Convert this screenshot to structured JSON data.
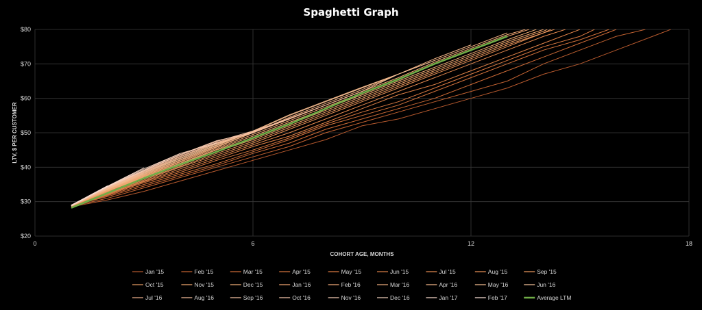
{
  "chart_data": {
    "type": "line",
    "title": "Spaghetti Graph",
    "xlabel": "COHORT AGE, MONTHS",
    "ylabel": "LTV, $  PER CUSTOMER",
    "xlim": [
      0,
      18
    ],
    "ylim": [
      20,
      80
    ],
    "x_ticks": [
      "0",
      "6",
      "12",
      "18"
    ],
    "y_ticks": [
      "$20",
      "$30",
      "$40",
      "$50",
      "$60",
      "$70",
      "$80"
    ],
    "grid": true,
    "legend_position": "bottom",
    "series": [
      {
        "name": "Jan '15",
        "color": "#b85a2e",
        "width": 1,
        "x": [
          1,
          2,
          3,
          4,
          5,
          6,
          7,
          8,
          9,
          10,
          11,
          12,
          13,
          14,
          15,
          16,
          17,
          17.5
        ],
        "y": [
          28.5,
          30.5,
          33,
          36,
          39,
          42,
          45,
          48,
          52,
          54,
          57,
          60,
          63,
          67,
          70,
          74,
          78,
          80
        ]
      },
      {
        "name": "Feb '15",
        "color": "#c26231",
        "width": 1,
        "x": [
          1,
          2,
          3,
          4,
          5,
          6,
          7,
          8,
          9,
          10,
          11,
          12,
          13,
          14,
          15,
          16,
          16.8
        ],
        "y": [
          28.6,
          31,
          34,
          37,
          40,
          43,
          46,
          50,
          53,
          56,
          59,
          62,
          65,
          70,
          74,
          78,
          80
        ]
      },
      {
        "name": "Mar '15",
        "color": "#cc6a36",
        "width": 1,
        "x": [
          1,
          2,
          3,
          4,
          5,
          6,
          7,
          8,
          9,
          10,
          11,
          12,
          13,
          14,
          15,
          16
        ],
        "y": [
          28.8,
          31.5,
          34.5,
          37.5,
          40.5,
          44,
          47,
          51,
          54,
          57,
          60,
          64,
          68,
          72,
          76,
          80
        ]
      },
      {
        "name": "Apr '15",
        "color": "#d4733c",
        "width": 1,
        "x": [
          1,
          2,
          3,
          4,
          5,
          6,
          7,
          8,
          9,
          10,
          11,
          12,
          13,
          14,
          15,
          15.8
        ],
        "y": [
          28.7,
          31.8,
          35,
          38,
          41,
          44.5,
          48,
          52,
          55,
          58,
          62,
          66,
          70,
          74,
          77,
          80
        ]
      },
      {
        "name": "May '15",
        "color": "#db7a42",
        "width": 1,
        "x": [
          1,
          2,
          3,
          4,
          5,
          6,
          7,
          8,
          9,
          10,
          11,
          12,
          13,
          14,
          15,
          15.4
        ],
        "y": [
          28.9,
          32,
          35.5,
          38.5,
          42,
          45,
          48.5,
          52.5,
          56,
          59,
          63,
          67,
          71,
          75,
          78,
          80
        ]
      },
      {
        "name": "Jun '15",
        "color": "#e08248",
        "width": 1,
        "x": [
          1,
          2,
          3,
          4,
          5,
          6,
          7,
          8,
          9,
          10,
          11,
          12,
          13,
          14,
          15
        ],
        "y": [
          29,
          32.2,
          35.8,
          39,
          42.5,
          46,
          49,
          53,
          57,
          61,
          64,
          68,
          72,
          76,
          80
        ]
      },
      {
        "name": "Jul '15",
        "color": "#e4894f",
        "width": 1,
        "x": [
          1,
          2,
          3,
          4,
          5,
          6,
          7,
          8,
          9,
          10,
          11,
          12,
          13,
          14,
          14.6
        ],
        "y": [
          28.6,
          32.4,
          36,
          39.5,
          43,
          46.5,
          50,
          54,
          58,
          62,
          66,
          70,
          74,
          78,
          80
        ]
      },
      {
        "name": "Aug '15",
        "color": "#e89156",
        "width": 1,
        "x": [
          1,
          2,
          3,
          4,
          5,
          6,
          7,
          8,
          9,
          10,
          11,
          12,
          13,
          14,
          14.3
        ],
        "y": [
          28.8,
          32.6,
          36.3,
          40,
          43.5,
          47,
          51,
          55,
          59,
          63,
          67,
          71,
          75,
          79,
          80
        ]
      },
      {
        "name": "Sep '15",
        "color": "#eb985e",
        "width": 1,
        "x": [
          1,
          2,
          3,
          4,
          5,
          6,
          7,
          8,
          9,
          10,
          11,
          12,
          13,
          14,
          14.2
        ],
        "y": [
          28.9,
          32.8,
          36.6,
          40.2,
          44,
          47.5,
          51.5,
          55.5,
          59.5,
          63.5,
          67.5,
          71.5,
          75.5,
          79,
          80
        ]
      },
      {
        "name": "Oct '15",
        "color": "#ed9f66",
        "width": 1,
        "x": [
          1,
          2,
          3,
          4,
          5,
          6,
          7,
          8,
          9,
          10,
          11,
          12,
          13,
          14,
          14.1
        ],
        "y": [
          29,
          33,
          37,
          40.5,
          44.5,
          48,
          52,
          56,
          60,
          64,
          68,
          72,
          76,
          79.5,
          80
        ]
      },
      {
        "name": "Nov '15",
        "color": "#efa66e",
        "width": 1,
        "x": [
          1,
          2,
          3,
          4,
          5,
          6,
          7,
          8,
          9,
          10,
          11,
          12,
          13,
          14
        ],
        "y": [
          28.7,
          33.1,
          37.1,
          41,
          45,
          48.5,
          52.5,
          56.5,
          60.5,
          64.5,
          68.5,
          72.5,
          76.5,
          80
        ]
      },
      {
        "name": "Dec '15",
        "color": "#f0ad76",
        "width": 1,
        "x": [
          1,
          2,
          3,
          4,
          5,
          6,
          7,
          8,
          9,
          10,
          11,
          12,
          13,
          13.8
        ],
        "y": [
          28.8,
          33.2,
          37.3,
          41.2,
          45.2,
          49,
          53,
          57,
          61,
          65,
          69,
          73,
          77,
          80
        ]
      },
      {
        "name": "Jan '16",
        "color": "#f0a470",
        "width": 1,
        "x": [
          1,
          2,
          3,
          4,
          5,
          6,
          7,
          8,
          9,
          10,
          11,
          12,
          13,
          13.6
        ],
        "y": [
          28.9,
          33.3,
          37.5,
          41.5,
          45.5,
          49.5,
          53.5,
          57.5,
          61.5,
          65.5,
          70,
          74,
          78,
          80
        ]
      },
      {
        "name": "Feb '16",
        "color": "#f1aa78",
        "width": 1,
        "x": [
          1,
          2,
          3,
          4,
          5,
          6,
          7,
          8,
          9,
          10,
          11,
          12,
          13,
          13.5
        ],
        "y": [
          29,
          33.4,
          37.6,
          41.7,
          45.8,
          50,
          54,
          58,
          62,
          66,
          70.5,
          74.5,
          78.5,
          80
        ]
      },
      {
        "name": "Mar '16",
        "color": "#f2b080",
        "width": 1,
        "x": [
          1,
          2,
          3,
          4,
          5,
          6,
          7,
          8,
          9,
          10,
          11,
          12,
          13
        ],
        "y": [
          28.7,
          33.5,
          37.8,
          42,
          46,
          50,
          54.5,
          58.5,
          62.5,
          67,
          71,
          75,
          79
        ]
      },
      {
        "name": "Apr '16",
        "color": "#f2b688",
        "width": 1,
        "x": [
          1,
          2,
          3,
          4,
          5,
          6,
          7,
          8,
          9,
          10,
          11,
          12
        ],
        "y": [
          28.8,
          33.6,
          38,
          42.2,
          46.3,
          50.3,
          55,
          59,
          63,
          67,
          71.5,
          75.5
        ]
      },
      {
        "name": "May '16",
        "color": "#f3bc90",
        "width": 1,
        "x": [
          1,
          2,
          3,
          4,
          5,
          6,
          7,
          8,
          9,
          10,
          11
        ],
        "y": [
          28.9,
          33.7,
          38.2,
          42.5,
          46.5,
          50.5,
          55.2,
          59.2,
          63.2,
          67,
          71
        ]
      },
      {
        "name": "Jun '16",
        "color": "#f3c198",
        "width": 1,
        "x": [
          1,
          2,
          3,
          4,
          5,
          6,
          7,
          8,
          9,
          10
        ],
        "y": [
          29,
          33.8,
          38.4,
          42.7,
          46.8,
          50,
          54,
          58,
          62,
          67
        ]
      },
      {
        "name": "Jul '16",
        "color": "#f2b590",
        "width": 1,
        "x": [
          1,
          2,
          3,
          4,
          5,
          6,
          7,
          8,
          9
        ],
        "y": [
          28.7,
          33.9,
          38.5,
          43,
          47,
          50,
          54,
          58,
          62
        ]
      },
      {
        "name": "Aug '16",
        "color": "#f3bb9a",
        "width": 1,
        "x": [
          1,
          2,
          3,
          4,
          5,
          6,
          7,
          8
        ],
        "y": [
          28.8,
          34,
          38.7,
          43.2,
          47.2,
          50.2,
          54.2,
          58
        ]
      },
      {
        "name": "Sep '16",
        "color": "#f4c1a3",
        "width": 1,
        "x": [
          1,
          2,
          3,
          4,
          5,
          6,
          7
        ],
        "y": [
          28.9,
          34.1,
          38.9,
          43.5,
          47.5,
          50.5,
          54
        ]
      },
      {
        "name": "Oct '16",
        "color": "#f5c7ad",
        "width": 1,
        "x": [
          1,
          2,
          3,
          4,
          5,
          6
        ],
        "y": [
          29,
          34.2,
          39,
          43.7,
          47.7,
          50
        ]
      },
      {
        "name": "Nov '16",
        "color": "#f6cdb7",
        "width": 1,
        "x": [
          1,
          2,
          3,
          4,
          5
        ],
        "y": [
          28.7,
          34.3,
          39.2,
          44,
          47
        ]
      },
      {
        "name": "Dec '16",
        "color": "#f7d4c1",
        "width": 1,
        "x": [
          1,
          2,
          3,
          4
        ],
        "y": [
          28.8,
          34.4,
          39.5,
          44
        ]
      },
      {
        "name": "Jan '17",
        "color": "#f8dacb",
        "width": 1,
        "x": [
          1,
          2,
          3
        ],
        "y": [
          28.9,
          34.5,
          39.8
        ]
      },
      {
        "name": "Feb '17",
        "color": "#f9e0d5",
        "width": 1,
        "x": [
          1,
          2
        ],
        "y": [
          29,
          34.6
        ]
      },
      {
        "name": "Average LTM",
        "color": "#70ad47",
        "width": 2.6,
        "x": [
          1,
          2,
          3,
          4,
          5,
          6,
          7,
          8,
          9,
          10,
          11,
          12,
          13
        ],
        "y": [
          28.2,
          32.5,
          36.8,
          40.8,
          44.5,
          48.5,
          52.5,
          57,
          61.5,
          65.5,
          70,
          74,
          78
        ]
      }
    ]
  }
}
